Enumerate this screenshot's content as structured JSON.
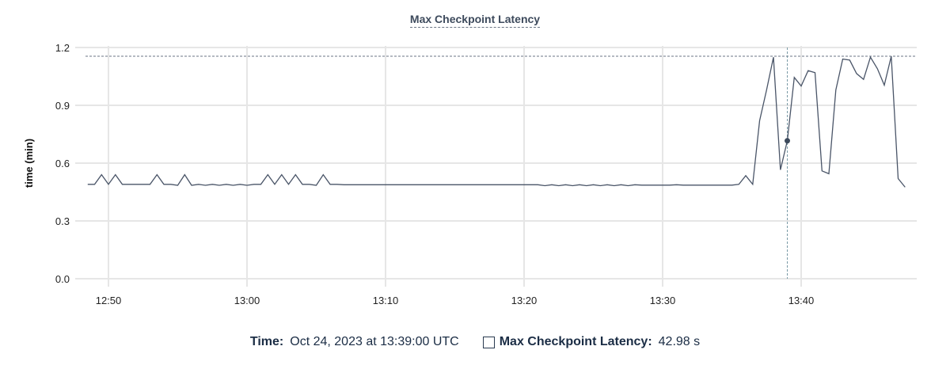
{
  "chart_data": {
    "type": "line",
    "title": "Max Checkpoint Latency",
    "xlabel": "",
    "ylabel": "time (min)",
    "x_start": "12:48:30",
    "x_interval_seconds": 30,
    "x_ticks": [
      "12:50",
      "13:00",
      "13:10",
      "13:20",
      "13:30",
      "13:40"
    ],
    "y_ticks": [
      "0.0",
      "0.3",
      "0.6",
      "0.9",
      "1.2"
    ],
    "ylim": [
      0,
      1.2
    ],
    "xlim": [
      "12:48:30",
      "13:47:30"
    ],
    "grid": true,
    "line_color": "#4a5568",
    "max_line": 1.155,
    "series": [
      {
        "values": [
          0.49,
          0.49,
          0.54,
          0.49,
          0.54,
          0.49,
          0.49,
          0.49,
          0.49,
          0.49,
          0.54,
          0.49,
          0.49,
          0.485,
          0.54,
          0.485,
          0.49,
          0.485,
          0.49,
          0.485,
          0.49,
          0.485,
          0.49,
          0.485,
          0.49,
          0.49,
          0.54,
          0.49,
          0.54,
          0.49,
          0.54,
          0.49,
          0.49,
          0.485,
          0.54,
          0.49,
          0.49,
          0.488,
          0.488,
          0.488,
          0.488,
          0.488,
          0.488,
          0.488,
          0.488,
          0.488,
          0.488,
          0.488,
          0.488,
          0.488,
          0.488,
          0.488,
          0.488,
          0.488,
          0.488,
          0.488,
          0.488,
          0.488,
          0.488,
          0.488,
          0.488,
          0.488,
          0.488,
          0.488,
          0.488,
          0.488,
          0.483,
          0.488,
          0.483,
          0.488,
          0.483,
          0.488,
          0.483,
          0.488,
          0.483,
          0.488,
          0.483,
          0.488,
          0.483,
          0.488,
          0.486,
          0.486,
          0.486,
          0.486,
          0.486,
          0.488,
          0.486,
          0.486,
          0.486,
          0.486,
          0.486,
          0.486,
          0.486,
          0.486,
          0.49,
          0.535,
          0.49,
          0.82,
          0.98,
          1.15,
          0.565,
          0.716,
          1.045,
          1.0,
          1.08,
          1.07,
          0.56,
          0.545,
          0.98,
          1.14,
          1.135,
          1.065,
          1.035,
          1.15,
          1.09,
          1.005,
          1.155,
          0.52,
          0.475
        ]
      }
    ],
    "hover": {
      "time": "13:39:00",
      "value_min": 0.716
    }
  },
  "tooltip": {
    "time_label": "Time:",
    "time_value": "Oct 24, 2023 at 13:39:00 UTC",
    "series_label": "Max Checkpoint Latency:",
    "series_value": "42.98 s"
  }
}
